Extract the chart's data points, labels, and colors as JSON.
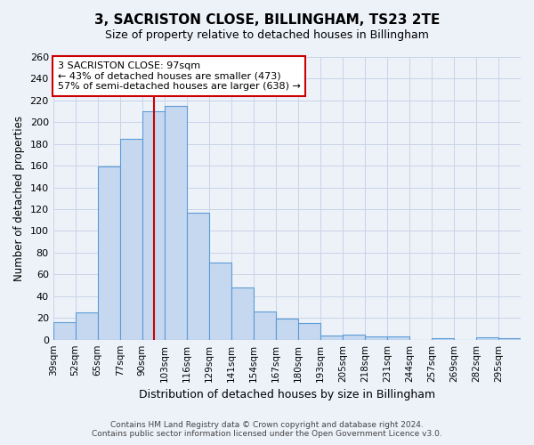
{
  "title": "3, SACRISTON CLOSE, BILLINGHAM, TS23 2TE",
  "subtitle": "Size of property relative to detached houses in Billingham",
  "xlabel": "Distribution of detached houses by size in Billingham",
  "ylabel": "Number of detached properties",
  "categories": [
    "39sqm",
    "52sqm",
    "65sqm",
    "77sqm",
    "90sqm",
    "103sqm",
    "116sqm",
    "129sqm",
    "141sqm",
    "154sqm",
    "167sqm",
    "180sqm",
    "193sqm",
    "205sqm",
    "218sqm",
    "231sqm",
    "244sqm",
    "257sqm",
    "269sqm",
    "282sqm",
    "295sqm"
  ],
  "values": [
    16,
    25,
    159,
    185,
    210,
    215,
    117,
    71,
    48,
    26,
    19,
    15,
    4,
    5,
    3,
    3,
    0,
    1,
    0,
    2,
    1
  ],
  "bar_color": "#c5d8f0",
  "bar_edge_color": "#5b9bd5",
  "property_line_color": "#cc0000",
  "property_sqm": 97,
  "bin_edges": [
    39,
    52,
    65,
    77,
    90,
    103,
    116,
    129,
    141,
    154,
    167,
    180,
    193,
    205,
    218,
    231,
    244,
    257,
    269,
    282,
    295,
    308
  ],
  "annotation_title": "3 SACRISTON CLOSE: 97sqm",
  "annotation_line1": "← 43% of detached houses are smaller (473)",
  "annotation_line2": "57% of semi-detached houses are larger (638) →",
  "annotation_box_color": "#ffffff",
  "annotation_box_edge_color": "#cc0000",
  "ylim": [
    0,
    260
  ],
  "yticks": [
    0,
    20,
    40,
    60,
    80,
    100,
    120,
    140,
    160,
    180,
    200,
    220,
    240,
    260
  ],
  "grid_color": "#c8d4e8",
  "background_color": "#edf2f9",
  "footer_line1": "Contains HM Land Registry data © Crown copyright and database right 2024.",
  "footer_line2": "Contains public sector information licensed under the Open Government Licence v3.0."
}
